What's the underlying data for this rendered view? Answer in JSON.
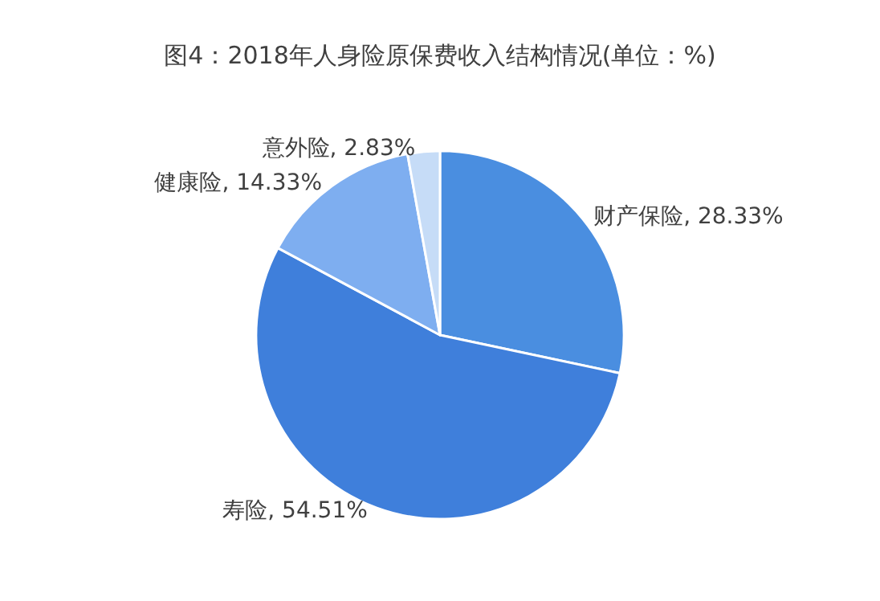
{
  "chart_data": {
    "type": "pie",
    "title": "图4：2018年人身险原保费收入结构情况(单位：%)",
    "categories": [
      "财产保险",
      "寿险",
      "健康险",
      "意外险"
    ],
    "values": [
      28.33,
      54.51,
      14.33,
      2.83
    ],
    "value_labels": [
      "28.33%",
      "54.51%",
      "14.33%",
      "2.83%"
    ],
    "colors": [
      "#4a8ee0",
      "#3f7fdb",
      "#7eaef0",
      "#c6dcf7"
    ],
    "legend": false
  }
}
